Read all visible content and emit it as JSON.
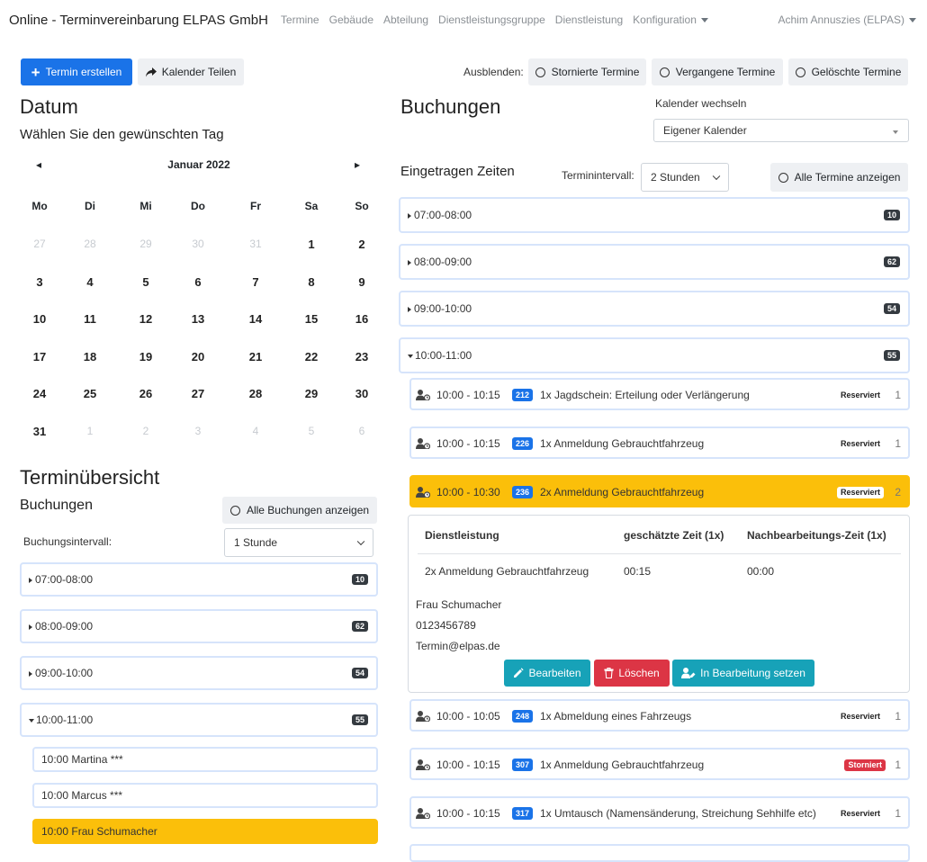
{
  "nav": {
    "brand": "Online - Terminvereinbarung ELPAS GmbH",
    "links": [
      "Termine",
      "Gebäude",
      "Abteilung",
      "Dienstleistungsgruppe",
      "Dienstleistung",
      "Konfiguration"
    ],
    "user": "Achim Annuszies (ELPAS)"
  },
  "toolbar": {
    "create": "Termin erstellen",
    "share": "Kalender Teilen",
    "hide_label": "Ausblenden:",
    "hide_cancelled": "Stornierte Termine",
    "hide_past": "Vergangene Termine",
    "hide_deleted": "Gelöschte Termine"
  },
  "datum": {
    "title": "Datum",
    "subtitle": "Wählen Sie den gewünschten Tag"
  },
  "calendar": {
    "month": "Januar 2022",
    "prev": "◂",
    "next": "▸",
    "weekdays": [
      "Mo",
      "Di",
      "Mi",
      "Do",
      "Fr",
      "Sa",
      "So"
    ],
    "weeks": [
      [
        "27",
        "28",
        "29",
        "30",
        "31",
        "1",
        "2"
      ],
      [
        "3",
        "4",
        "5",
        "6",
        "7",
        "8",
        "9"
      ],
      [
        "10",
        "11",
        "12",
        "13",
        "14",
        "15",
        "16"
      ],
      [
        "17",
        "18",
        "19",
        "20",
        "21",
        "22",
        "23"
      ],
      [
        "24",
        "25",
        "26",
        "27",
        "28",
        "29",
        "30"
      ],
      [
        "31",
        "1",
        "2",
        "3",
        "4",
        "5",
        "6"
      ]
    ],
    "muted": [
      [
        true,
        true,
        true,
        true,
        true,
        false,
        false
      ],
      [
        false,
        false,
        false,
        false,
        false,
        false,
        false
      ],
      [
        false,
        false,
        false,
        false,
        false,
        false,
        false
      ],
      [
        false,
        false,
        false,
        false,
        false,
        false,
        false
      ],
      [
        false,
        false,
        false,
        false,
        false,
        false,
        false
      ],
      [
        false,
        true,
        true,
        true,
        true,
        true,
        true
      ]
    ]
  },
  "overview": {
    "title": "Terminübersicht",
    "subtitle": "Buchungen",
    "show_all": "Alle Buchungen anzeigen",
    "interval_label": "Buchungsintervall:",
    "interval_value": "1 Stunde",
    "slots": [
      {
        "label": "07:00-08:00",
        "count": "10"
      },
      {
        "label": "08:00-09:00",
        "count": "62"
      },
      {
        "label": "09:00-10:00",
        "count": "54"
      },
      {
        "label": "10:00-11:00",
        "count": "55"
      }
    ],
    "bookings": [
      "10:00  Martina ***",
      "10:00  Marcus ***",
      "10:00  Frau Schumacher"
    ]
  },
  "buchungen": {
    "title": "Buchungen",
    "switch_label": "Kalender wechseln",
    "calendar_value": "Eigener Kalender",
    "times_label": "Eingetragen Zeiten",
    "interval_label": "Terminintervall:",
    "interval_value": "2 Stunden",
    "show_all": "Alle Termine anzeigen",
    "slots": [
      {
        "label": "07:00-08:00",
        "count": "10"
      },
      {
        "label": "08:00-09:00",
        "count": "62"
      },
      {
        "label": "09:00-10:00",
        "count": "54"
      },
      {
        "label": "10:00-11:00",
        "count": "55"
      }
    ],
    "appointments": [
      {
        "time": "10:00 - 10:15",
        "id": "212",
        "service": "1x Jagdschein: Erteilung oder Verlängerung",
        "status": "Reserviert",
        "qty": "1"
      },
      {
        "time": "10:00 - 10:15",
        "id": "226",
        "service": "1x Anmeldung Gebrauchtfahrzeug",
        "status": "Reserviert",
        "qty": "1"
      },
      {
        "time": "10:00 - 10:30",
        "id": "236",
        "service": "2x Anmeldung Gebrauchtfahrzeug",
        "status": "Reserviert",
        "qty": "2"
      },
      {
        "time": "10:00 - 10:05",
        "id": "248",
        "service": "1x Abmeldung eines Fahrzeugs",
        "status": "Reserviert",
        "qty": "1"
      },
      {
        "time": "10:00 - 10:15",
        "id": "307",
        "service": "1x Anmeldung Gebrauchtfahrzeug",
        "status": "Storniert",
        "qty": "1"
      },
      {
        "time": "10:00 - 10:15",
        "id": "317",
        "service": "1x Umtausch (Namensänderung, Streichung Sehhilfe etc)",
        "status": "Reserviert",
        "qty": "1"
      }
    ],
    "detail": {
      "col_service": "Dienstleistung",
      "col_est": "geschätzte Zeit (1x)",
      "col_post": "Nachbearbeitungs-Zeit (1x)",
      "service": "2x Anmeldung Gebrauchtfahrzeug",
      "est": "00:15",
      "post": "00:00",
      "name": "Frau Schumacher",
      "phone": "0123456789",
      "email": "Termin@elpas.de",
      "edit": "Bearbeiten",
      "delete": "Löschen",
      "process": "In Bearbeitung setzen"
    }
  },
  "colors": {
    "primary": "#1a73e8",
    "highlight": "#fbbf0a",
    "info": "#17a2b8",
    "danger": "#dc3545"
  }
}
